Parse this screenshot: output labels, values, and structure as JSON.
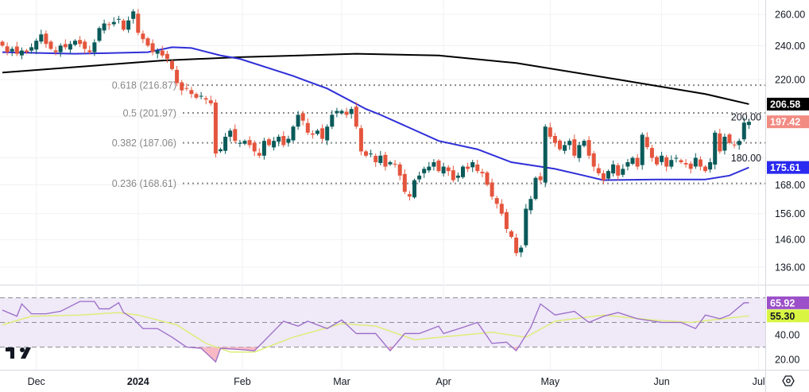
{
  "chart_data": {
    "type": "candlestick",
    "scale": "log",
    "time_labels": [
      {
        "label": "Dec",
        "index": 7,
        "bold": false
      },
      {
        "label": "2024",
        "index": 28,
        "bold": true
      },
      {
        "label": "Feb",
        "index": 49.5,
        "bold": false
      },
      {
        "label": "Mar",
        "index": 70,
        "bold": false
      },
      {
        "label": "Apr",
        "index": 91,
        "bold": false
      },
      {
        "label": "May",
        "index": 113,
        "bold": false
      },
      {
        "label": "Jun",
        "index": 136,
        "bold": false
      },
      {
        "label": "Jul",
        "index": 156,
        "bold": false
      }
    ],
    "price_ticks": [
      "260.00",
      "240.00",
      "220.00",
      "200.00",
      "180.00",
      "168.00",
      "156.00",
      "146.00",
      "136.00"
    ],
    "closes": [
      240,
      236,
      238,
      235,
      237,
      236,
      239,
      243,
      247,
      241,
      238,
      236,
      240,
      239,
      241,
      243,
      241,
      238,
      236,
      242,
      251,
      254,
      253,
      255,
      257,
      250,
      256,
      262,
      248,
      244,
      240,
      236,
      237,
      234,
      232,
      226,
      218,
      214,
      215,
      212,
      210,
      211,
      209,
      207,
      182,
      184,
      190,
      193,
      188,
      187,
      188,
      186,
      183,
      181,
      188,
      186,
      188,
      190,
      186,
      189,
      195,
      201,
      198,
      192,
      191,
      193,
      189,
      195,
      201,
      203,
      203,
      201,
      204,
      195,
      183,
      181,
      182,
      178,
      181,
      176,
      178,
      177,
      172,
      165,
      163,
      170,
      172,
      175,
      176,
      178,
      174,
      176,
      174,
      170,
      172,
      176,
      175,
      178,
      174,
      173,
      168,
      163,
      160,
      156,
      150,
      147,
      141,
      143,
      158,
      162,
      171,
      170,
      195,
      190,
      187,
      184,
      186,
      188,
      181,
      186,
      188,
      181,
      176,
      173,
      170,
      174,
      177,
      172,
      175,
      178,
      180,
      176,
      191,
      185,
      180,
      177,
      181,
      176,
      179,
      180,
      178,
      177,
      175,
      180,
      176,
      174,
      178,
      192,
      183,
      190,
      187,
      186,
      188,
      197,
      197.42
    ],
    "ma_fast": [
      [
        0,
        236
      ],
      [
        15,
        235
      ],
      [
        30,
        236
      ],
      [
        35,
        239
      ],
      [
        39,
        238.5
      ],
      [
        45,
        234
      ],
      [
        49,
        232
      ],
      [
        60,
        222
      ],
      [
        67,
        215
      ],
      [
        75,
        204
      ],
      [
        78,
        201
      ],
      [
        90,
        188
      ],
      [
        98,
        184
      ],
      [
        105,
        178
      ],
      [
        114,
        175
      ],
      [
        120,
        172
      ],
      [
        124,
        170
      ],
      [
        135,
        170.3
      ],
      [
        145,
        170.3
      ],
      [
        150,
        172
      ],
      [
        154,
        175.61
      ]
    ],
    "ma_slow": [
      [
        0,
        224
      ],
      [
        33,
        231
      ],
      [
        49,
        233
      ],
      [
        73,
        235
      ],
      [
        90,
        234
      ],
      [
        106,
        229.5
      ],
      [
        127,
        220
      ],
      [
        145,
        212
      ],
      [
        154,
        206.58
      ]
    ],
    "fib_levels": [
      {
        "label": "0.618 (216.87)",
        "price": 216.87
      },
      {
        "label": "0.5 (201.97)",
        "price": 201.97
      },
      {
        "label": "0.382 (187.06)",
        "price": 187.06
      },
      {
        "label": "0.236 (168.61)",
        "price": 168.61
      }
    ],
    "badges": [
      {
        "label": "206.58",
        "price": 206.58,
        "bg": "#000000",
        "fg": "#ffffff"
      },
      {
        "label": "197.42",
        "price": 197.42,
        "bg": "#f28b82",
        "fg": "#ffffff"
      },
      {
        "label": "175.61",
        "price": 175.61,
        "bg": "#2a2af0",
        "fg": "#ffffff"
      }
    ],
    "rsi": {
      "ticks": [
        "40.00",
        "20.00"
      ],
      "levels": [
        70,
        50,
        30
      ],
      "line": [
        [
          0,
          60
        ],
        [
          3,
          55
        ],
        [
          4,
          65
        ],
        [
          6,
          57
        ],
        [
          9,
          57
        ],
        [
          12,
          59
        ],
        [
          16,
          67
        ],
        [
          19,
          67
        ],
        [
          20,
          61
        ],
        [
          22,
          61
        ],
        [
          24,
          66
        ],
        [
          25,
          58
        ],
        [
          27,
          53
        ],
        [
          29,
          45
        ],
        [
          32,
          45
        ],
        [
          35,
          38
        ],
        [
          38,
          30
        ],
        [
          41,
          29
        ],
        [
          44,
          18
        ],
        [
          45,
          29
        ],
        [
          49,
          28
        ],
        [
          52,
          27
        ],
        [
          55,
          39
        ],
        [
          58,
          51
        ],
        [
          61,
          47
        ],
        [
          63,
          51
        ],
        [
          67,
          45
        ],
        [
          70,
          52
        ],
        [
          73,
          41
        ],
        [
          77,
          41
        ],
        [
          80,
          27
        ],
        [
          83,
          41
        ],
        [
          86,
          41
        ],
        [
          90,
          47
        ],
        [
          91,
          41
        ],
        [
          95,
          46
        ],
        [
          98,
          50
        ],
        [
          101,
          33
        ],
        [
          104,
          34
        ],
        [
          106,
          27
        ],
        [
          109,
          46
        ],
        [
          111,
          65
        ],
        [
          114,
          56
        ],
        [
          118,
          59
        ],
        [
          121,
          50
        ],
        [
          124,
          55
        ],
        [
          127,
          58
        ],
        [
          131,
          53
        ],
        [
          136,
          50
        ],
        [
          140,
          50
        ],
        [
          143,
          45
        ],
        [
          145,
          56
        ],
        [
          148,
          53
        ],
        [
          150,
          56
        ],
        [
          153,
          65.92
        ],
        [
          154,
          65.92
        ]
      ],
      "signal": [
        [
          0,
          48
        ],
        [
          6,
          55
        ],
        [
          16,
          56
        ],
        [
          24,
          58
        ],
        [
          28,
          56
        ],
        [
          36,
          48
        ],
        [
          42,
          33
        ],
        [
          47,
          26
        ],
        [
          52,
          26
        ],
        [
          60,
          38
        ],
        [
          70,
          49
        ],
        [
          77,
          47
        ],
        [
          85,
          36
        ],
        [
          93,
          39
        ],
        [
          101,
          42
        ],
        [
          108,
          38
        ],
        [
          114,
          51
        ],
        [
          124,
          56
        ],
        [
          134,
          52
        ],
        [
          142,
          50
        ],
        [
          154,
          55.3
        ]
      ],
      "badges": [
        {
          "label": "65.92",
          "value": 65.92,
          "bg": "#9b4fc8",
          "fg": "#ffffff"
        },
        {
          "label": "55.30",
          "value": 55.3,
          "bg": "#d9f542",
          "fg": "#131722"
        }
      ]
    },
    "colors": {
      "up": "#0a5a5a",
      "down": "#e4553d",
      "ma_fast": "#2f2fd8",
      "ma_slow": "#000000",
      "rsi": "#9b6ac7",
      "rsi_signal": "#e0ec7a",
      "rsi_band": "#efe9f8"
    }
  }
}
